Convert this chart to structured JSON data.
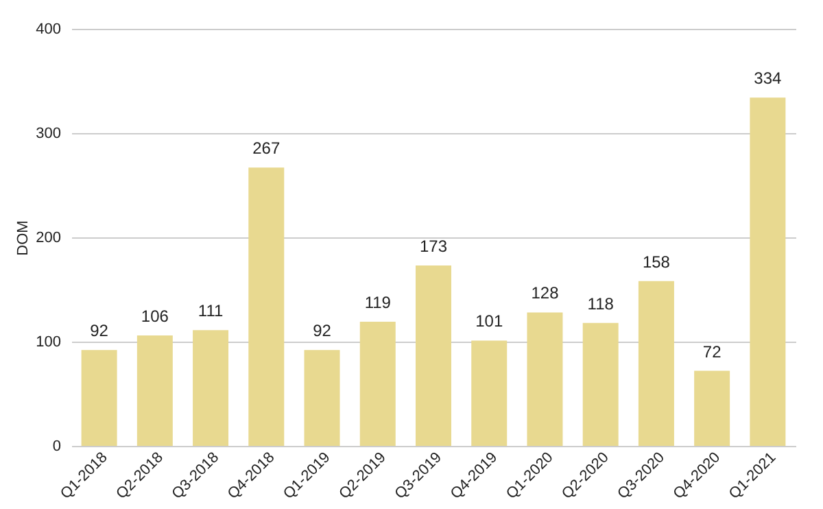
{
  "chart_data": {
    "type": "bar",
    "ylabel": "DOM",
    "categories": [
      "Q1-2018",
      "Q2-2018",
      "Q3-2018",
      "Q4-2018",
      "Q1-2019",
      "Q2-2019",
      "Q3-2019",
      "Q4-2019",
      "Q1-2020",
      "Q2-2020",
      "Q3-2020",
      "Q4-2020",
      "Q1-2021"
    ],
    "values": [
      92,
      106,
      111,
      267,
      92,
      119,
      173,
      101,
      128,
      118,
      158,
      72,
      334
    ],
    "color": "#e8d990",
    "ylim": [
      0,
      400
    ],
    "yticks": [
      0,
      100,
      200,
      300,
      400
    ],
    "grid": "y",
    "data_labels": true
  }
}
